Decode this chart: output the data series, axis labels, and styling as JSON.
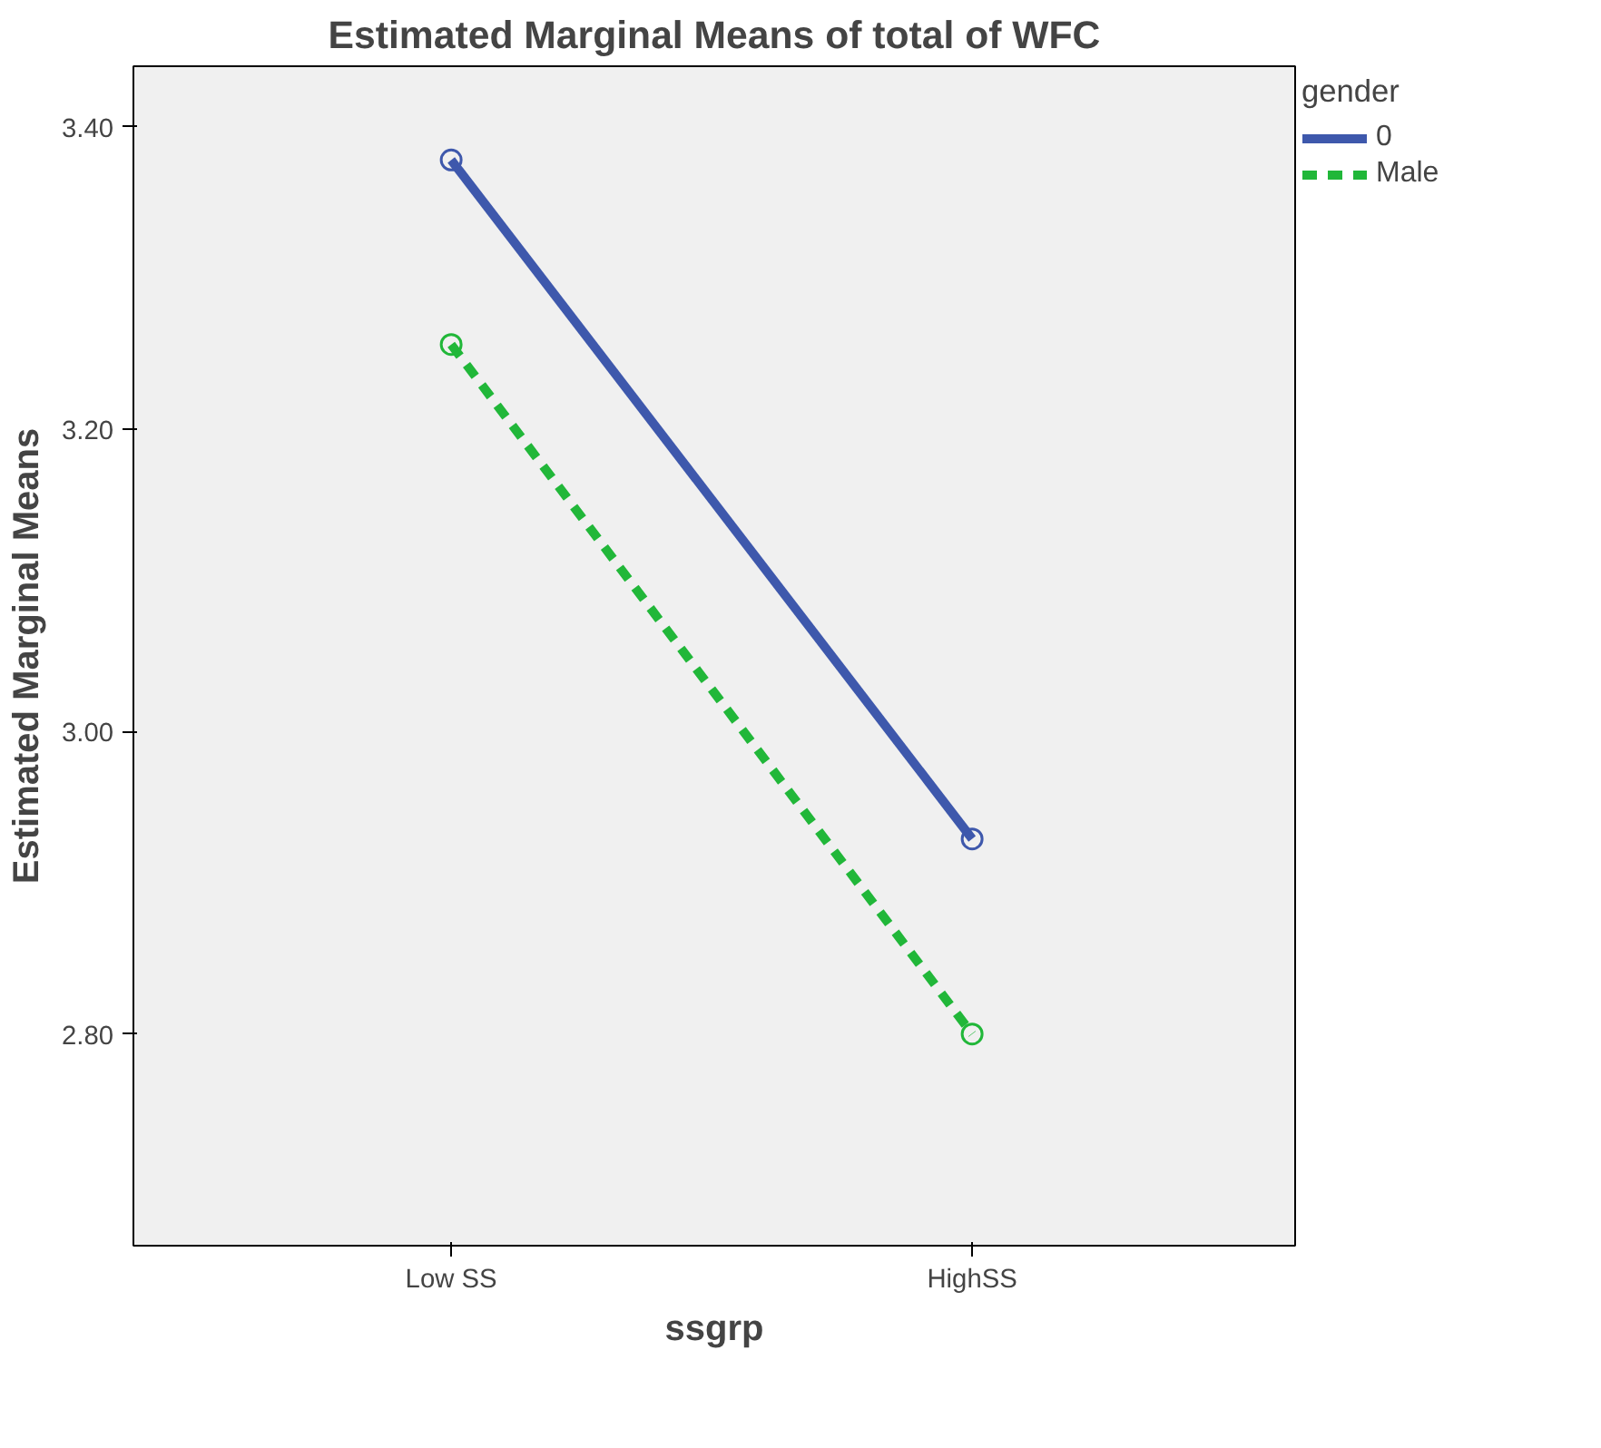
{
  "chart_data": {
    "type": "line",
    "title": "Estimated Marginal Means of total of WFC",
    "xlabel": "ssgrp",
    "ylabel": "Estimated Marginal Means",
    "legend_title": "gender",
    "categories": [
      "Low SS",
      "HighSS"
    ],
    "series": [
      {
        "name": "0",
        "color": "#3e58ac",
        "values": [
          3.378,
          2.929
        ],
        "line_style": "solid"
      },
      {
        "name": "Male",
        "color": "#21b739",
        "values": [
          3.256,
          2.8
        ],
        "line_style": "dashed"
      }
    ],
    "ylim": [
      2.66,
      3.44
    ],
    "yticks": [
      {
        "value": 2.8,
        "label": "2.80"
      },
      {
        "value": 3.0,
        "label": "3.00"
      },
      {
        "value": 3.2,
        "label": "3.20"
      },
      {
        "value": 3.4,
        "label": "3.40"
      }
    ],
    "grid": false,
    "legend": "right",
    "marker": "circle"
  }
}
